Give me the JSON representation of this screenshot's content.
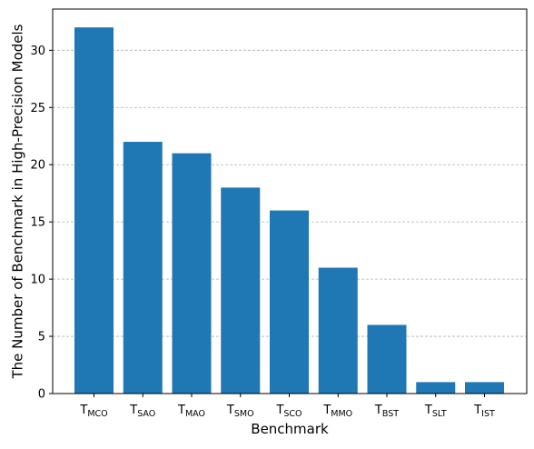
{
  "chart_data": {
    "type": "bar",
    "categories": [
      {
        "base": "T",
        "sub": "MCO"
      },
      {
        "base": "T",
        "sub": "SAO"
      },
      {
        "base": "T",
        "sub": "MAO"
      },
      {
        "base": "T",
        "sub": "SMO"
      },
      {
        "base": "T",
        "sub": "SCO"
      },
      {
        "base": "T",
        "sub": "MMO"
      },
      {
        "base": "T",
        "sub": "BST"
      },
      {
        "base": "T",
        "sub": "SLT"
      },
      {
        "base": "T",
        "sub": "IST"
      }
    ],
    "values": [
      32,
      22,
      21,
      18,
      16,
      11,
      6,
      1,
      1
    ],
    "xlabel": "Benchmark",
    "ylabel": "The Number of Benchmark in High-Precision Models",
    "ylim": [
      0,
      33.6
    ],
    "yticks": [
      0,
      5,
      10,
      15,
      20,
      25,
      30
    ],
    "grid": {
      "axis": "y",
      "style": "dashed",
      "color": "#b0b0b0"
    },
    "bar_color": "#1f77b4"
  }
}
